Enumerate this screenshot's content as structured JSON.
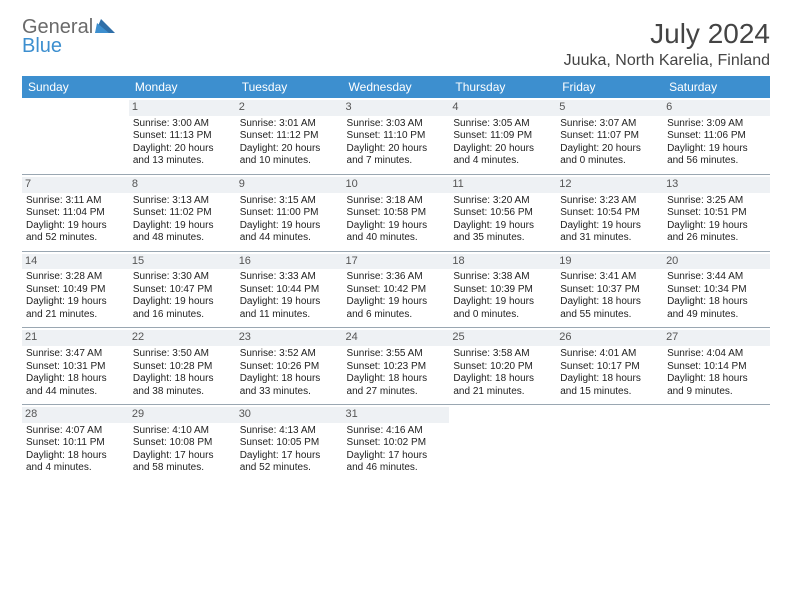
{
  "logo": {
    "text1": "General",
    "text2": "Blue"
  },
  "title": "July 2024",
  "subtitle": "Juuka, North Karelia, Finland",
  "colors": {
    "header_bg": "#3d8fcf",
    "header_text": "#ffffff",
    "daynum_bg": "#eef1f4",
    "border": "#9aa7b2",
    "logo_blue": "#3d8fcf",
    "logo_gray": "#6a6a6a"
  },
  "weekdays": [
    "Sunday",
    "Monday",
    "Tuesday",
    "Wednesday",
    "Thursday",
    "Friday",
    "Saturday"
  ],
  "weeks": [
    [
      {
        "blank": true
      },
      {
        "n": "1",
        "sr": "3:00 AM",
        "ss": "11:13 PM",
        "dl1": "20 hours",
        "dl2": "and 13 minutes."
      },
      {
        "n": "2",
        "sr": "3:01 AM",
        "ss": "11:12 PM",
        "dl1": "20 hours",
        "dl2": "and 10 minutes."
      },
      {
        "n": "3",
        "sr": "3:03 AM",
        "ss": "11:10 PM",
        "dl1": "20 hours",
        "dl2": "and 7 minutes."
      },
      {
        "n": "4",
        "sr": "3:05 AM",
        "ss": "11:09 PM",
        "dl1": "20 hours",
        "dl2": "and 4 minutes."
      },
      {
        "n": "5",
        "sr": "3:07 AM",
        "ss": "11:07 PM",
        "dl1": "20 hours",
        "dl2": "and 0 minutes."
      },
      {
        "n": "6",
        "sr": "3:09 AM",
        "ss": "11:06 PM",
        "dl1": "19 hours",
        "dl2": "and 56 minutes."
      }
    ],
    [
      {
        "n": "7",
        "sr": "3:11 AM",
        "ss": "11:04 PM",
        "dl1": "19 hours",
        "dl2": "and 52 minutes."
      },
      {
        "n": "8",
        "sr": "3:13 AM",
        "ss": "11:02 PM",
        "dl1": "19 hours",
        "dl2": "and 48 minutes."
      },
      {
        "n": "9",
        "sr": "3:15 AM",
        "ss": "11:00 PM",
        "dl1": "19 hours",
        "dl2": "and 44 minutes."
      },
      {
        "n": "10",
        "sr": "3:18 AM",
        "ss": "10:58 PM",
        "dl1": "19 hours",
        "dl2": "and 40 minutes."
      },
      {
        "n": "11",
        "sr": "3:20 AM",
        "ss": "10:56 PM",
        "dl1": "19 hours",
        "dl2": "and 35 minutes."
      },
      {
        "n": "12",
        "sr": "3:23 AM",
        "ss": "10:54 PM",
        "dl1": "19 hours",
        "dl2": "and 31 minutes."
      },
      {
        "n": "13",
        "sr": "3:25 AM",
        "ss": "10:51 PM",
        "dl1": "19 hours",
        "dl2": "and 26 minutes."
      }
    ],
    [
      {
        "n": "14",
        "sr": "3:28 AM",
        "ss": "10:49 PM",
        "dl1": "19 hours",
        "dl2": "and 21 minutes."
      },
      {
        "n": "15",
        "sr": "3:30 AM",
        "ss": "10:47 PM",
        "dl1": "19 hours",
        "dl2": "and 16 minutes."
      },
      {
        "n": "16",
        "sr": "3:33 AM",
        "ss": "10:44 PM",
        "dl1": "19 hours",
        "dl2": "and 11 minutes."
      },
      {
        "n": "17",
        "sr": "3:36 AM",
        "ss": "10:42 PM",
        "dl1": "19 hours",
        "dl2": "and 6 minutes."
      },
      {
        "n": "18",
        "sr": "3:38 AM",
        "ss": "10:39 PM",
        "dl1": "19 hours",
        "dl2": "and 0 minutes."
      },
      {
        "n": "19",
        "sr": "3:41 AM",
        "ss": "10:37 PM",
        "dl1": "18 hours",
        "dl2": "and 55 minutes."
      },
      {
        "n": "20",
        "sr": "3:44 AM",
        "ss": "10:34 PM",
        "dl1": "18 hours",
        "dl2": "and 49 minutes."
      }
    ],
    [
      {
        "n": "21",
        "sr": "3:47 AM",
        "ss": "10:31 PM",
        "dl1": "18 hours",
        "dl2": "and 44 minutes."
      },
      {
        "n": "22",
        "sr": "3:50 AM",
        "ss": "10:28 PM",
        "dl1": "18 hours",
        "dl2": "and 38 minutes."
      },
      {
        "n": "23",
        "sr": "3:52 AM",
        "ss": "10:26 PM",
        "dl1": "18 hours",
        "dl2": "and 33 minutes."
      },
      {
        "n": "24",
        "sr": "3:55 AM",
        "ss": "10:23 PM",
        "dl1": "18 hours",
        "dl2": "and 27 minutes."
      },
      {
        "n": "25",
        "sr": "3:58 AM",
        "ss": "10:20 PM",
        "dl1": "18 hours",
        "dl2": "and 21 minutes."
      },
      {
        "n": "26",
        "sr": "4:01 AM",
        "ss": "10:17 PM",
        "dl1": "18 hours",
        "dl2": "and 15 minutes."
      },
      {
        "n": "27",
        "sr": "4:04 AM",
        "ss": "10:14 PM",
        "dl1": "18 hours",
        "dl2": "and 9 minutes."
      }
    ],
    [
      {
        "n": "28",
        "sr": "4:07 AM",
        "ss": "10:11 PM",
        "dl1": "18 hours",
        "dl2": "and 4 minutes."
      },
      {
        "n": "29",
        "sr": "4:10 AM",
        "ss": "10:08 PM",
        "dl1": "17 hours",
        "dl2": "and 58 minutes."
      },
      {
        "n": "30",
        "sr": "4:13 AM",
        "ss": "10:05 PM",
        "dl1": "17 hours",
        "dl2": "and 52 minutes."
      },
      {
        "n": "31",
        "sr": "4:16 AM",
        "ss": "10:02 PM",
        "dl1": "17 hours",
        "dl2": "and 46 minutes."
      },
      {
        "blank": true
      },
      {
        "blank": true
      },
      {
        "blank": true
      }
    ]
  ],
  "labels": {
    "sunrise": "Sunrise:",
    "sunset": "Sunset:",
    "daylight": "Daylight:"
  }
}
